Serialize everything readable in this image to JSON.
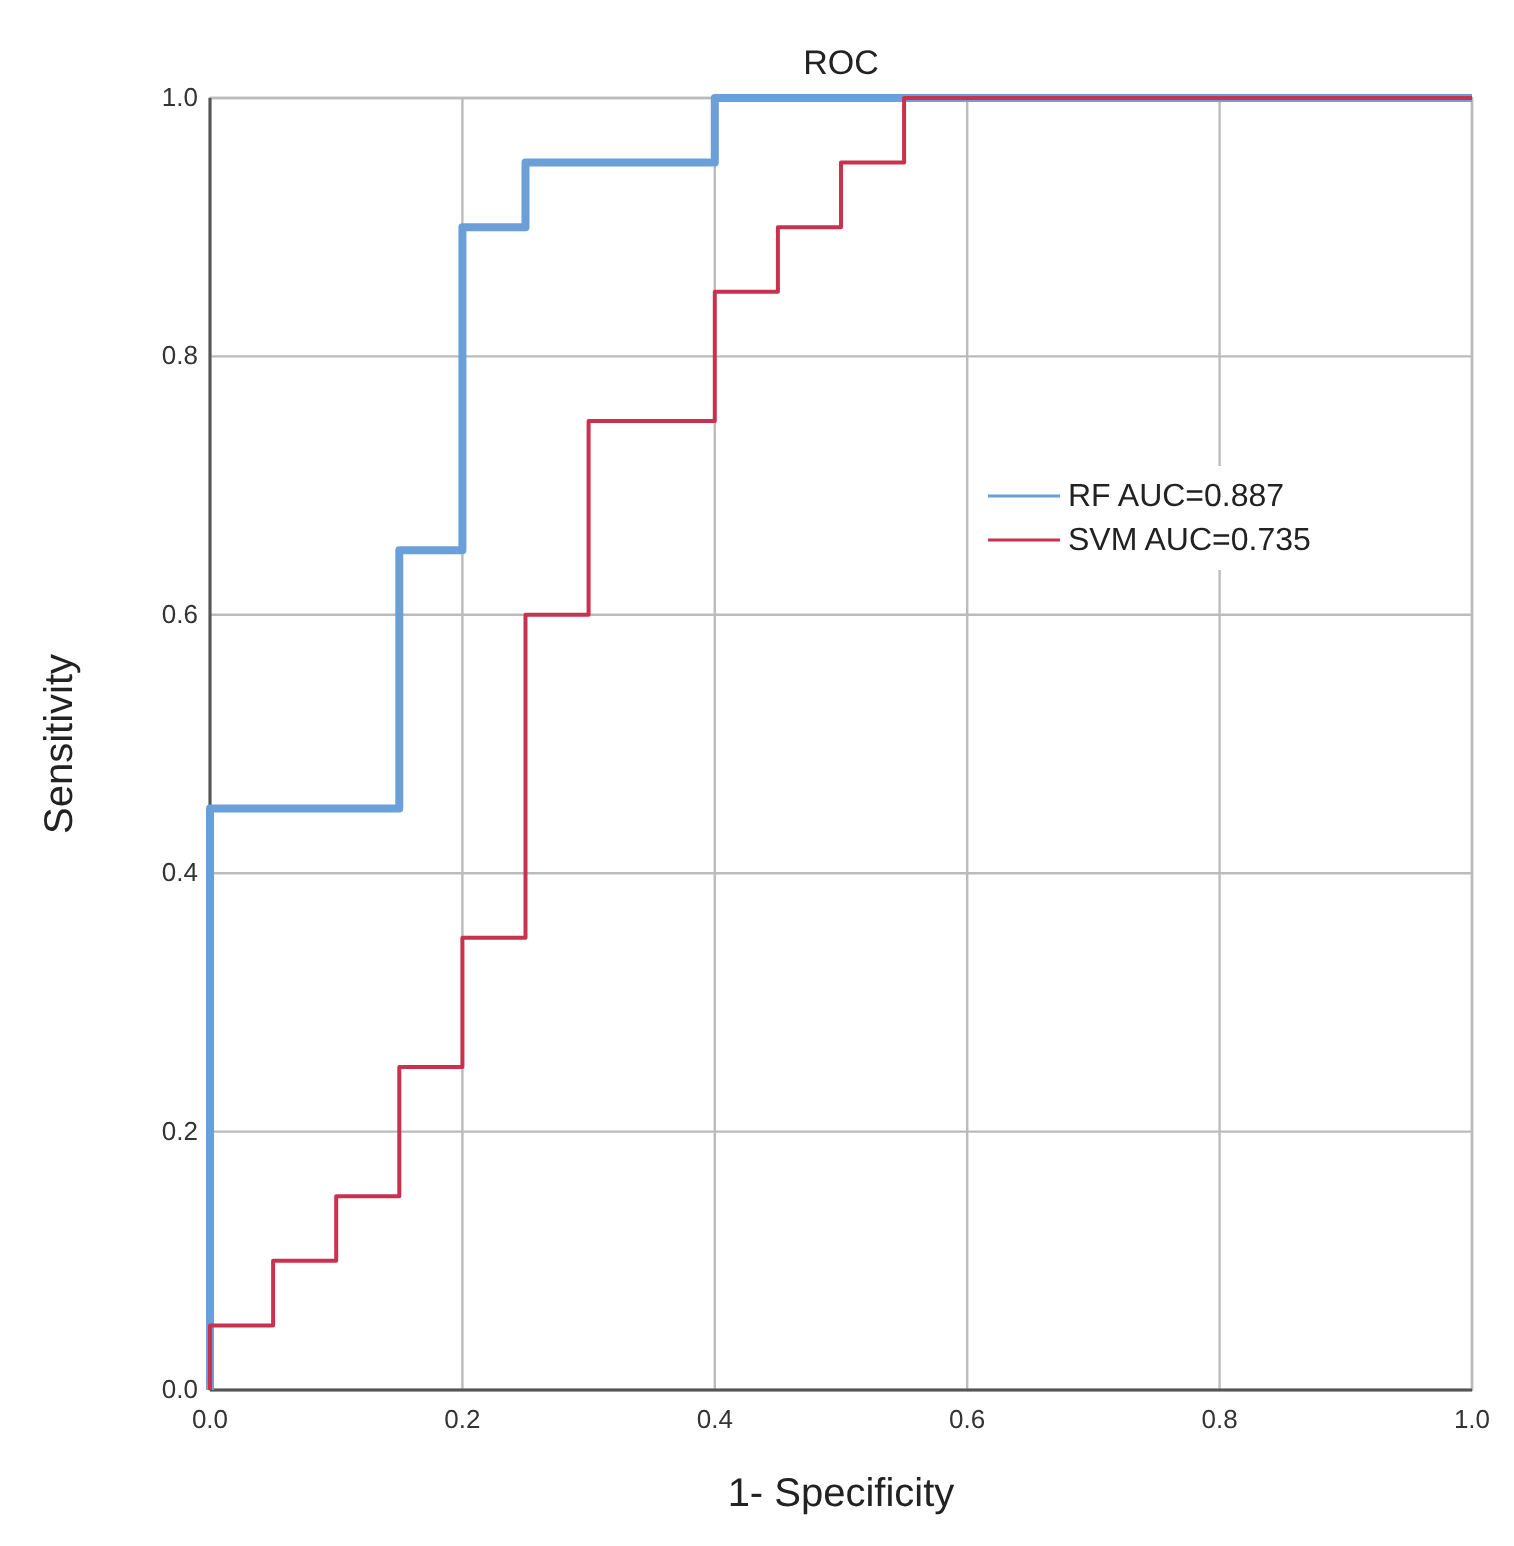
{
  "chart_data": {
    "type": "step",
    "title": "ROC",
    "xlabel": "1- Specificity",
    "ylabel": "Sensitivity",
    "xlim": [
      0,
      1
    ],
    "ylim": [
      0,
      1
    ],
    "xticks": [
      {
        "value": 0,
        "label": "0.0"
      },
      0.2,
      0.4,
      0.6,
      0.8,
      {
        "value": 1,
        "label": "1.0"
      }
    ],
    "yticks": [
      {
        "value": 0,
        "label": "0.0"
      },
      0.2,
      0.4,
      0.6,
      0.8,
      {
        "value": 1,
        "label": "1.0"
      }
    ],
    "grid": true,
    "legend": "right",
    "line_style": "solid",
    "series": [
      {
        "name": "RF AUC=0.887",
        "color": "#6a9fd8",
        "x": [
          0,
          0,
          0.15,
          0.2,
          0.25,
          0.4,
          1
        ],
        "values": [
          0,
          0.45,
          0.65,
          0.9,
          0.95,
          1,
          1
        ]
      },
      {
        "name": "SVM AUC=0.735",
        "color": "#c8324f",
        "x": [
          0,
          0,
          0.05,
          0.1,
          0.15,
          0.2,
          0.25,
          0.3,
          0.4,
          0.45,
          0.5,
          0.55,
          1
        ],
        "values": [
          0,
          0.05,
          0.1,
          0.15,
          0.25,
          0.35,
          0.6,
          0.75,
          0.85,
          0.9,
          0.95,
          1,
          1
        ]
      }
    ]
  }
}
